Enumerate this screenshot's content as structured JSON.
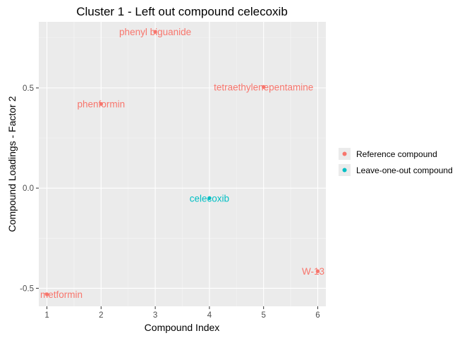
{
  "chart_data": {
    "type": "scatter",
    "title": "Cluster 1 - Left out compound celecoxib",
    "xlabel": "Compound Index",
    "ylabel": "Compound Loadings - Factor 2",
    "xlim": [
      0.85,
      6.15
    ],
    "ylim": [
      -0.59,
      0.83
    ],
    "xticks": [
      1,
      2,
      3,
      4,
      5,
      6
    ],
    "xtick_labels": [
      "1",
      "2",
      "3",
      "4",
      "5",
      "6"
    ],
    "yticks": [
      -0.5,
      0.0,
      0.5
    ],
    "ytick_labels": [
      "-0.5",
      "0.0",
      "0.5"
    ],
    "grid": true,
    "legend_position": "right",
    "series": [
      {
        "name": "Reference compound",
        "color": "#F8766D",
        "points": [
          {
            "x": 1,
            "y": -0.53,
            "label": "metformin"
          },
          {
            "x": 2,
            "y": 0.42,
            "label": "phenformin"
          },
          {
            "x": 3,
            "y": 0.78,
            "label": "phenyl biguanide"
          },
          {
            "x": 5,
            "y": 0.505,
            "label": "tetraethylenepentamine"
          },
          {
            "x": 6,
            "y": -0.415,
            "label": "W-13"
          }
        ]
      },
      {
        "name": "Leave-one-out compound",
        "color": "#00BFC4",
        "points": [
          {
            "x": 4,
            "y": -0.05,
            "label": "celecoxib"
          }
        ]
      }
    ]
  }
}
